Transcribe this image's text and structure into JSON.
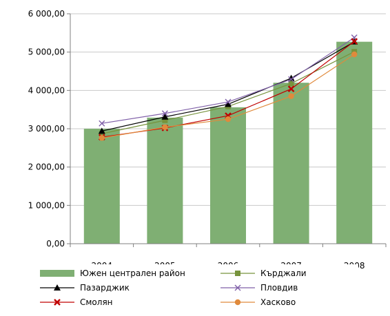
{
  "chart_data": {
    "type": "bar",
    "title": "",
    "xlabel": "",
    "ylabel": "",
    "categories": [
      "2004",
      "2005",
      "2006",
      "2007",
      "2008"
    ],
    "ylim": [
      0,
      6000
    ],
    "yticks": [
      0,
      1000,
      2000,
      3000,
      4000,
      5000,
      6000
    ],
    "ytick_labels": [
      "0,00",
      "1 000,00",
      "2 000,00",
      "3 000,00",
      "4 000,00",
      "5 000,00",
      "6 000,00"
    ],
    "grid": true,
    "legend_position": "bottom",
    "bar_series": {
      "name": "Южен централен район",
      "color": "#7faf73",
      "values": [
        3000,
        3290,
        3560,
        4200,
        5270
      ]
    },
    "line_series": [
      {
        "name": "Кърджали",
        "color": "#77933c",
        "marker": "square",
        "values": [
          2870,
          3220,
          3580,
          4180,
          5010
        ]
      },
      {
        "name": "Пазарджик",
        "color": "#000000",
        "marker": "triangle",
        "values": [
          2940,
          3310,
          3640,
          4320,
          5270
        ]
      },
      {
        "name": "Пловдив",
        "color": "#7f5fa8",
        "marker": "x",
        "values": [
          3140,
          3400,
          3700,
          4290,
          5380
        ]
      },
      {
        "name": "Смолян",
        "color": "#c00000",
        "marker": "cross",
        "values": [
          2780,
          3020,
          3340,
          4040,
          5280
        ]
      },
      {
        "name": "Хасково",
        "color": "#e08a3c",
        "marker": "circle",
        "values": [
          2760,
          3040,
          3250,
          3850,
          4940
        ]
      }
    ]
  }
}
